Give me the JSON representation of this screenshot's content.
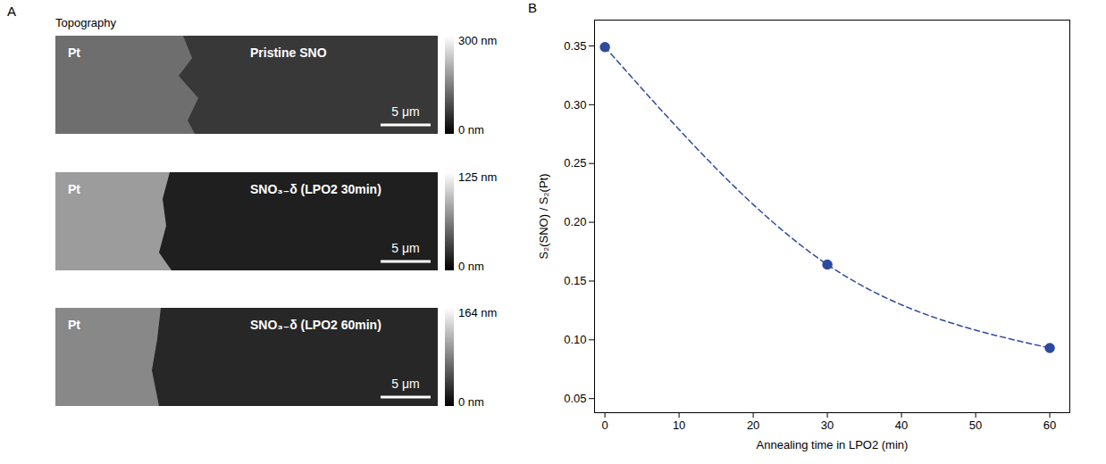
{
  "panel_a": {
    "letter": "A",
    "title": "Topography",
    "images": [
      {
        "left_label": "Pt",
        "right_label": "Pristine SNO",
        "scale_bar": "5 μm",
        "colorbar": {
          "range": [
            0,
            300
          ],
          "ticks": [
            {
              "value": 0,
              "label": "0 nm"
            },
            {
              "value": 300,
              "label": "300 nm"
            }
          ]
        }
      },
      {
        "left_label": "Pt",
        "right_label": "SNO₃₋δ (LPO2 30min)",
        "scale_bar": "5 μm",
        "colorbar": {
          "range": [
            0,
            125
          ],
          "ticks": [
            {
              "value": 0,
              "label": "0 nm"
            },
            {
              "value": 125,
              "label": "125 nm"
            }
          ]
        }
      },
      {
        "left_label": "Pt",
        "right_label": "SNO₃₋δ (LPO2 60min)",
        "scale_bar": "5 μm",
        "colorbar": {
          "range": [
            0,
            164
          ],
          "ticks": [
            {
              "value": 0,
              "label": "0 nm"
            },
            {
              "value": 164,
              "label": "164 nm"
            }
          ]
        }
      }
    ]
  },
  "chart_data": {
    "letter": "B",
    "type": "line",
    "xlabel": "Annealing time in LPO2 (min)",
    "ylabel": "S₂(SNO) / S₂(Pt)",
    "x": [
      0,
      30,
      60
    ],
    "values": [
      0.349,
      0.164,
      0.093
    ],
    "color": "#2e4a9e",
    "marker": "circle",
    "line_style": "dashed",
    "xlim": [
      -1.4,
      62.7
    ],
    "xticks": [
      0,
      10,
      20,
      30,
      40,
      50,
      60
    ],
    "ylim": [
      0.038,
      0.372
    ],
    "yticks": [
      0.05,
      {
        "value": 0.1,
        "label": "0.10"
      },
      0.15,
      {
        "value": 0.2,
        "label": "0.20"
      },
      0.25,
      {
        "value": 0.3,
        "label": "0.30"
      },
      0.35
    ]
  }
}
